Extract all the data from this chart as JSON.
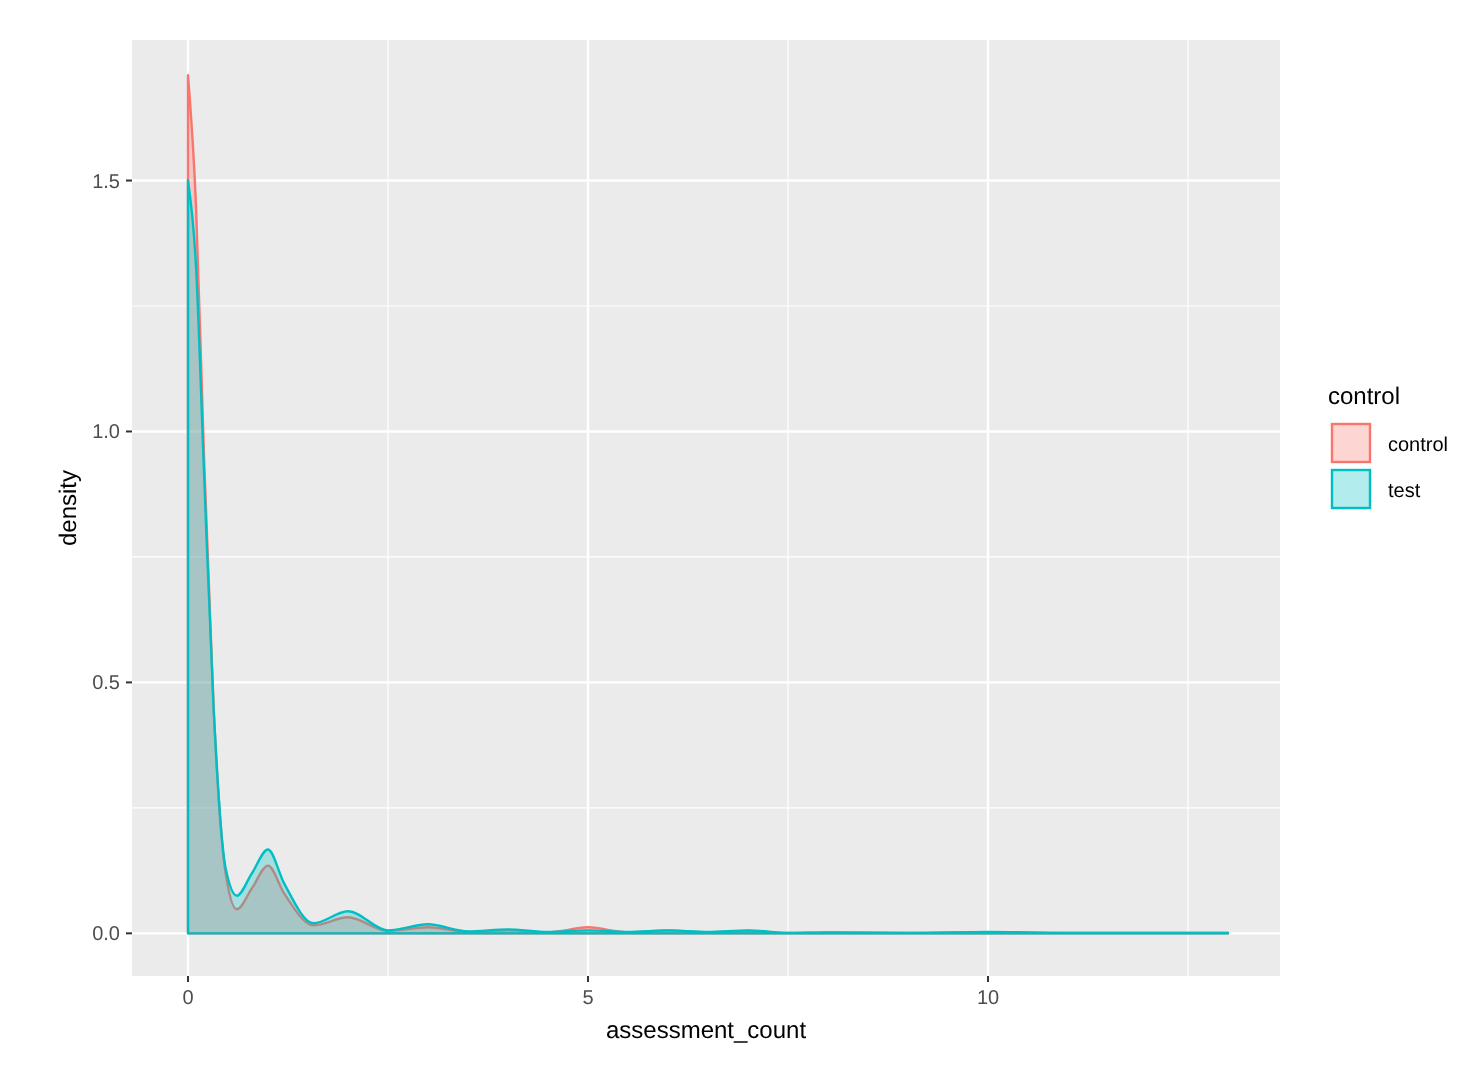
{
  "chart_data": {
    "type": "area",
    "xlabel": "assessment_count",
    "ylabel": "density",
    "legend_title": "control",
    "x": [
      0,
      0.1,
      0.2,
      0.32,
      0.47,
      0.61,
      0.8,
      1.0,
      1.2,
      1.57,
      2.0,
      2.5,
      3.0,
      3.5,
      4.0,
      4.5,
      5.0,
      5.5,
      6.0,
      6.5,
      7.0,
      7.5,
      8,
      9,
      10,
      11,
      12,
      13
    ],
    "series": [
      {
        "name": "control",
        "color": "#f8766d",
        "values": [
          1.71,
          1.45,
          0.95,
          0.45,
          0.12,
          0.048,
          0.09,
          0.135,
          0.08,
          0.016,
          0.032,
          0.005,
          0.012,
          0.003,
          0.006,
          0.002,
          0.012,
          0.002,
          0.006,
          0.002,
          0.005,
          0.001,
          0.002,
          0.001,
          0.002,
          0.001,
          0.001,
          0.001
        ]
      },
      {
        "name": "test",
        "color": "#00bfc4",
        "values": [
          1.5,
          1.33,
          0.92,
          0.45,
          0.13,
          0.075,
          0.12,
          0.167,
          0.1,
          0.02,
          0.044,
          0.006,
          0.018,
          0.004,
          0.008,
          0.003,
          0.006,
          0.003,
          0.006,
          0.003,
          0.006,
          0.001,
          0.002,
          0.001,
          0.003,
          0.001,
          0.001,
          0.001
        ]
      }
    ],
    "xlim": [
      -0.7,
      13.65
    ],
    "xticks": [
      0,
      5,
      10
    ],
    "ylim": [
      -0.085,
      1.78
    ],
    "yticks": [
      {
        "value": 0,
        "label": "0.0"
      },
      {
        "value": 0.5,
        "label": "0.5"
      },
      {
        "value": 1,
        "label": "1.0"
      },
      {
        "value": 1.5,
        "label": "1.5"
      }
    ],
    "grid": true,
    "legend": "right"
  }
}
